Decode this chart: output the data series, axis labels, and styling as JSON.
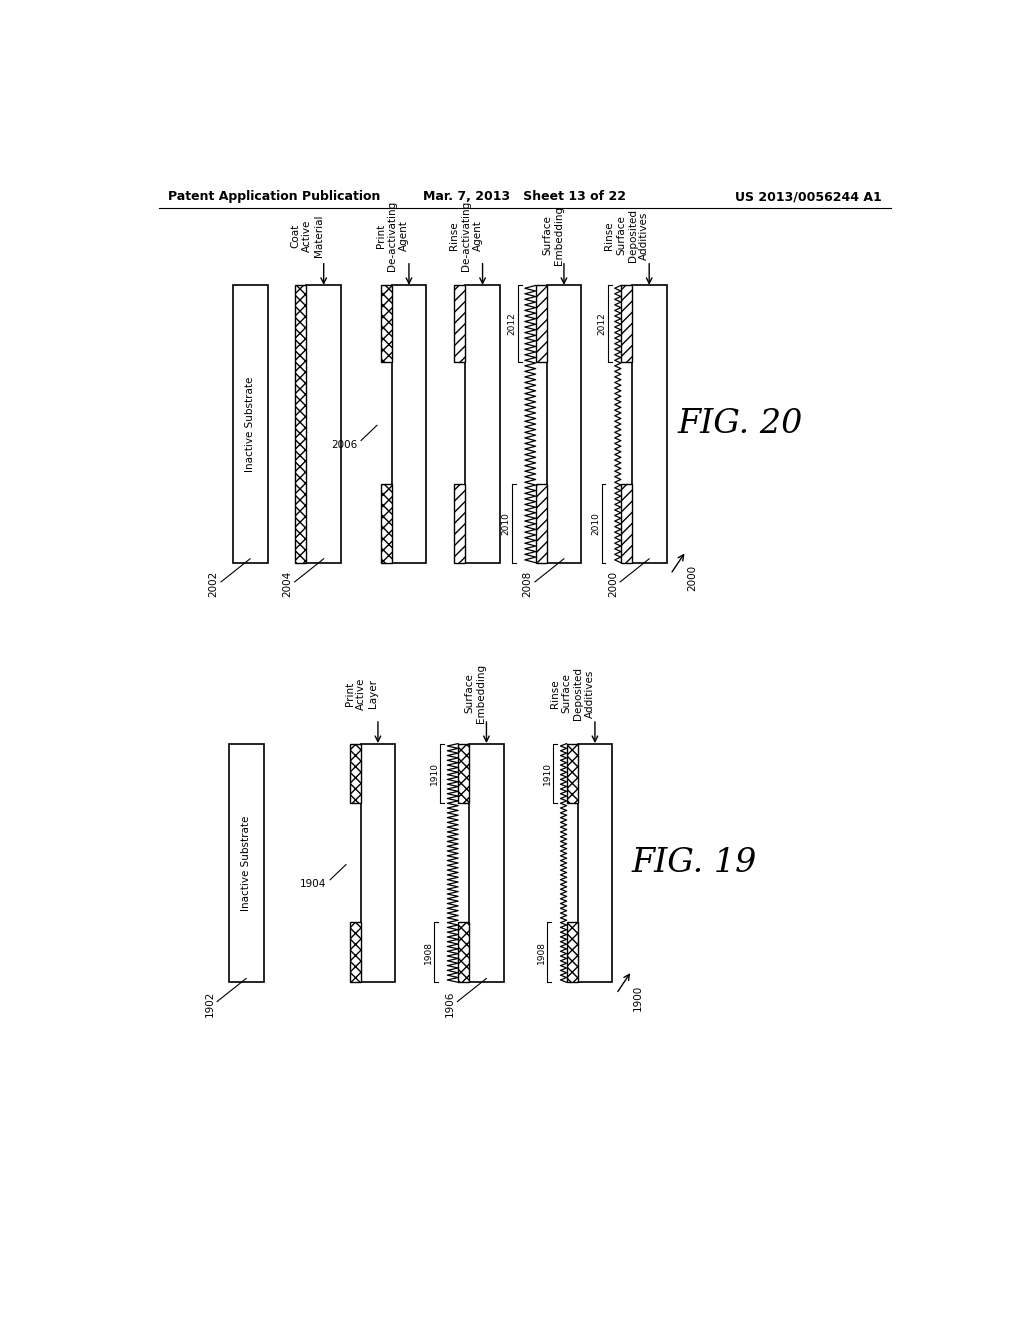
{
  "header_left": "Patent Application Publication",
  "header_mid": "Mar. 7, 2013   Sheet 13 of 22",
  "header_right": "US 2013/0056244 A1",
  "fig19_label": "FIG. 19",
  "fig20_label": "FIG. 20",
  "background_color": "#ffffff",
  "line_color": "#000000",
  "fig20": {
    "steps": [
      {
        "ref": "2002",
        "substrate_label": "Inactive Substrate",
        "type": "plain"
      },
      {
        "ref": "2004",
        "step_label": "Coat\nActive\nMaterial",
        "type": "full_coat"
      },
      {
        "ref": null,
        "step_label": "Print\nDe-activating\nAgent",
        "type": "partial_coat_xxx",
        "part_ref": "2006"
      },
      {
        "ref": null,
        "step_label": "Rinse\nDe-activating\nAgent",
        "type": "partial_coat_slash"
      },
      {
        "ref": "2008",
        "step_label": "Surface\nEmbedding",
        "type": "zigzag_partial",
        "labels": [
          "2010",
          "2012"
        ]
      },
      {
        "ref": "2000",
        "step_label": "Rinse\nSurface\nDeposited\nAdditives",
        "type": "zigzag_embedded",
        "labels": [
          "2010",
          "2012"
        ]
      }
    ]
  },
  "fig19": {
    "steps": [
      {
        "ref": "1902",
        "substrate_label": "Inactive Substrate",
        "type": "plain"
      },
      {
        "ref": null,
        "step_label": "Print\nActive\nLayer",
        "type": "partial_coat_xxx",
        "part_ref": "1904"
      },
      {
        "ref": "1906",
        "step_label": "Surface\nEmbedding",
        "type": "zigzag_full19",
        "labels": [
          "1908",
          "1910"
        ]
      },
      {
        "ref": "1900",
        "step_label": "Rinse\nSurface\nDeposited\nAdditives",
        "type": "zigzag_embedded19",
        "labels": [
          "1908",
          "1910"
        ]
      }
    ]
  }
}
